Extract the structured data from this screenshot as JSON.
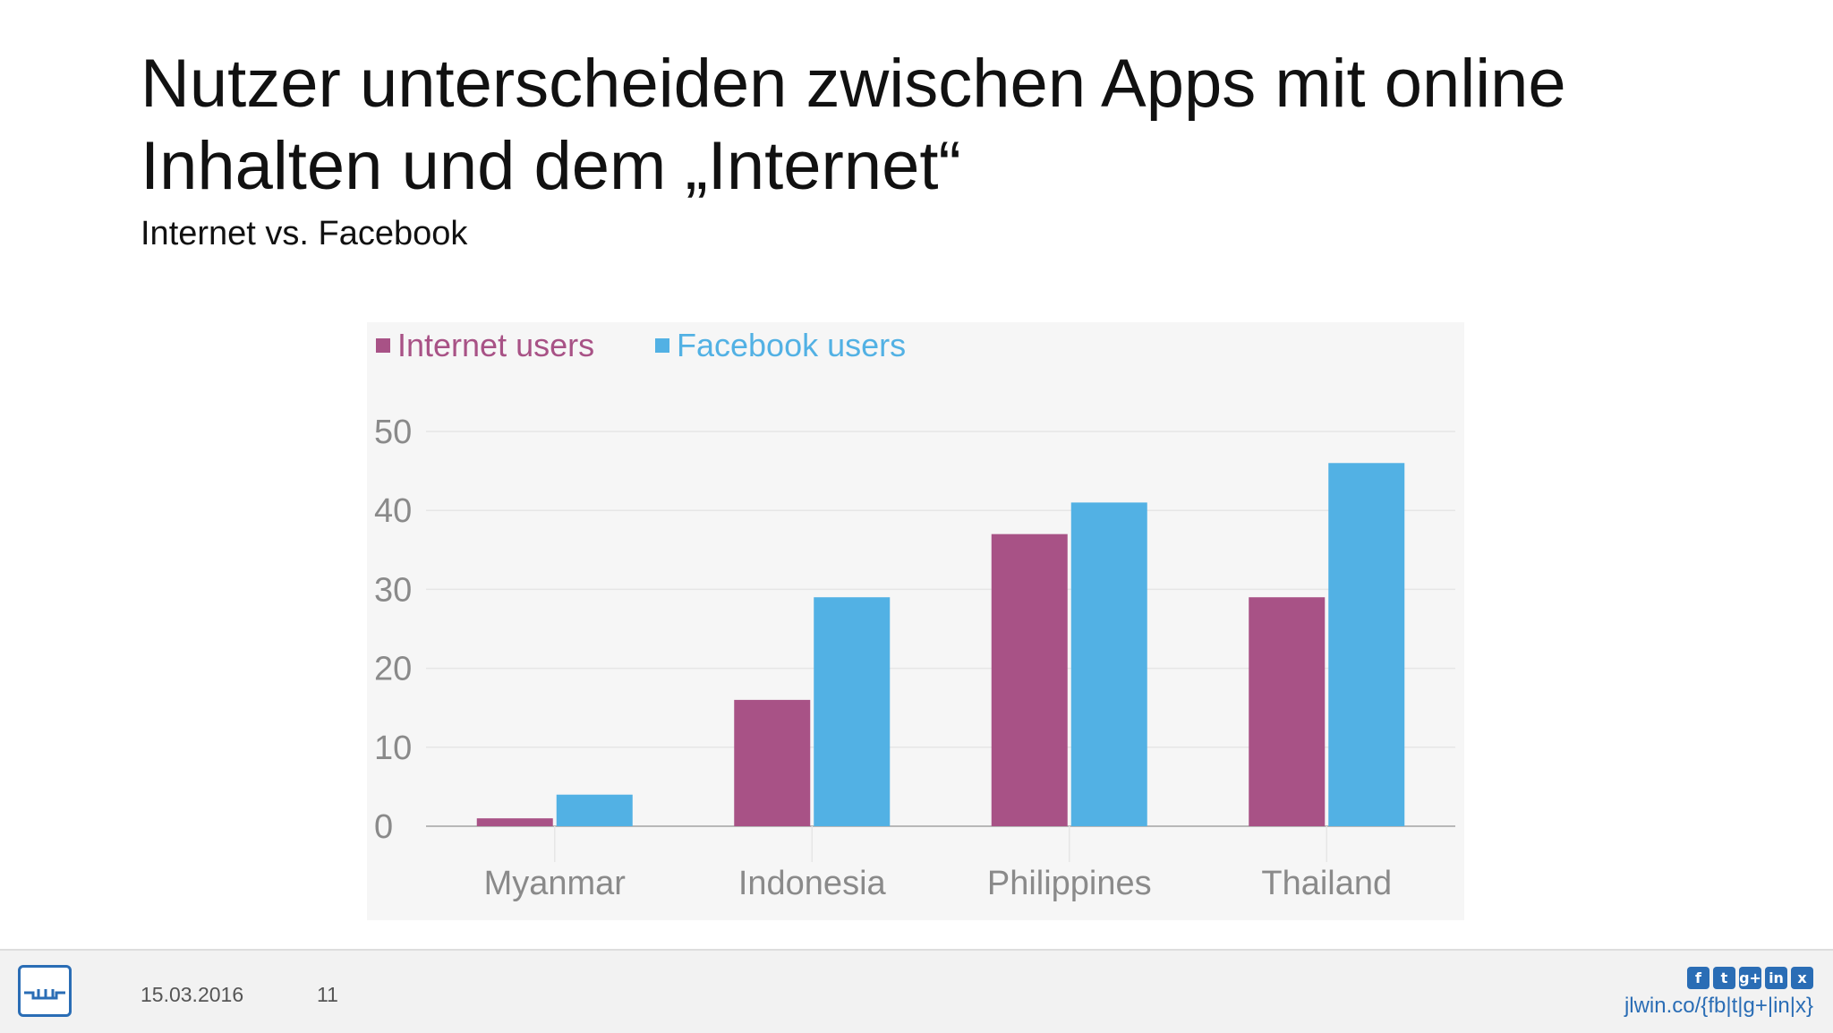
{
  "slide": {
    "title": "Nutzer unterscheiden zwischen Apps mit online Inhalten und dem „Internet“",
    "subtitle": "Internet vs. Facebook"
  },
  "chart_data": {
    "type": "bar",
    "categories": [
      "Myanmar",
      "Indonesia",
      "Philippines",
      "Thailand"
    ],
    "series": [
      {
        "name": "Internet users",
        "color": "#a85286",
        "values": [
          1,
          16,
          37,
          29
        ]
      },
      {
        "name": "Facebook users",
        "color": "#52b1e4",
        "values": [
          4,
          29,
          41,
          46
        ]
      }
    ],
    "yticks": [
      0,
      10,
      20,
      30,
      40,
      50
    ],
    "ylim": [
      0,
      50
    ],
    "grid": true,
    "legend": "top-left"
  },
  "footer": {
    "date": "15.03.2016",
    "page": "11",
    "link": "jlwin.co/{fb|t|g+|in|x}",
    "logo_icon": "jlwin-logo-icon",
    "social_icons": [
      {
        "icon": "facebook-icon",
        "glyph": "f"
      },
      {
        "icon": "twitter-icon",
        "glyph": "t"
      },
      {
        "icon": "google-plus-icon",
        "glyph": "g+"
      },
      {
        "icon": "linkedin-icon",
        "glyph": "in"
      },
      {
        "icon": "xing-icon",
        "glyph": "x"
      }
    ]
  }
}
